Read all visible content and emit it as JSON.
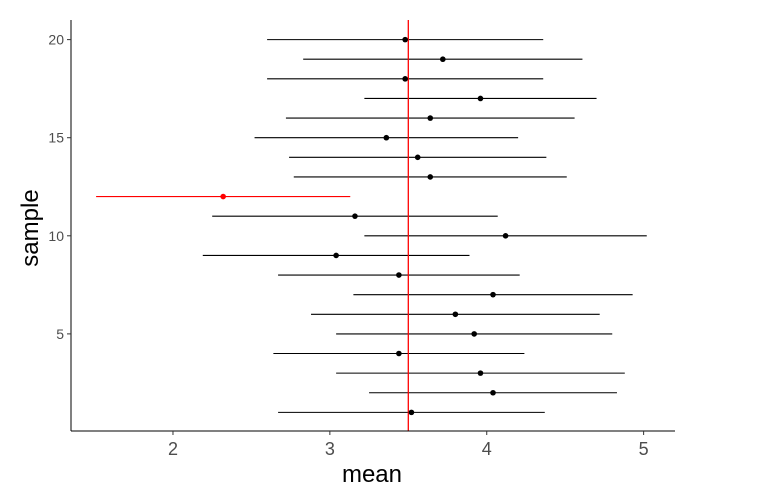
{
  "chart_data": {
    "type": "scatter",
    "xlabel": "mean",
    "ylabel": "sample",
    "xlim": [
      1.35,
      5.2
    ],
    "ylim": [
      0.05,
      21
    ],
    "x_ticks": [
      2,
      3,
      4,
      5
    ],
    "x_tick_labels": [
      "2",
      "3",
      "4",
      "5"
    ],
    "y_ticks": [
      5,
      10,
      15,
      20
    ],
    "y_tick_labels": [
      "5",
      "10",
      "15",
      "20"
    ],
    "grid": false,
    "reference_line": {
      "x": 3.5,
      "color": "#ff0000"
    },
    "point_color": "#000000",
    "highlight_color": "#ff0000",
    "points": [
      {
        "sample": 1,
        "mean": 3.52,
        "lower": 2.67,
        "upper": 4.37,
        "highlight": false
      },
      {
        "sample": 2,
        "mean": 4.04,
        "lower": 3.25,
        "upper": 4.83,
        "highlight": false
      },
      {
        "sample": 3,
        "mean": 3.96,
        "lower": 3.04,
        "upper": 4.88,
        "highlight": false
      },
      {
        "sample": 4,
        "mean": 3.44,
        "lower": 2.64,
        "upper": 4.24,
        "highlight": false
      },
      {
        "sample": 5,
        "mean": 3.92,
        "lower": 3.04,
        "upper": 4.8,
        "highlight": false
      },
      {
        "sample": 6,
        "mean": 3.8,
        "lower": 2.88,
        "upper": 4.72,
        "highlight": false
      },
      {
        "sample": 7,
        "mean": 4.04,
        "lower": 3.15,
        "upper": 4.93,
        "highlight": false
      },
      {
        "sample": 8,
        "mean": 3.44,
        "lower": 2.67,
        "upper": 4.21,
        "highlight": false
      },
      {
        "sample": 9,
        "mean": 3.04,
        "lower": 2.19,
        "upper": 3.89,
        "highlight": false
      },
      {
        "sample": 10,
        "mean": 4.12,
        "lower": 3.22,
        "upper": 5.02,
        "highlight": false
      },
      {
        "sample": 11,
        "mean": 3.16,
        "lower": 2.25,
        "upper": 4.07,
        "highlight": false
      },
      {
        "sample": 12,
        "mean": 2.32,
        "lower": 1.51,
        "upper": 3.13,
        "highlight": true
      },
      {
        "sample": 13,
        "mean": 3.64,
        "lower": 2.77,
        "upper": 4.51,
        "highlight": false
      },
      {
        "sample": 14,
        "mean": 3.56,
        "lower": 2.74,
        "upper": 4.38,
        "highlight": false
      },
      {
        "sample": 15,
        "mean": 3.36,
        "lower": 2.52,
        "upper": 4.2,
        "highlight": false
      },
      {
        "sample": 16,
        "mean": 3.64,
        "lower": 2.72,
        "upper": 4.56,
        "highlight": false
      },
      {
        "sample": 17,
        "mean": 3.96,
        "lower": 3.22,
        "upper": 4.7,
        "highlight": false
      },
      {
        "sample": 18,
        "mean": 3.48,
        "lower": 2.6,
        "upper": 4.36,
        "highlight": false
      },
      {
        "sample": 19,
        "mean": 3.72,
        "lower": 2.83,
        "upper": 4.61,
        "highlight": false
      },
      {
        "sample": 20,
        "mean": 3.48,
        "lower": 2.6,
        "upper": 4.36,
        "highlight": false
      }
    ]
  }
}
